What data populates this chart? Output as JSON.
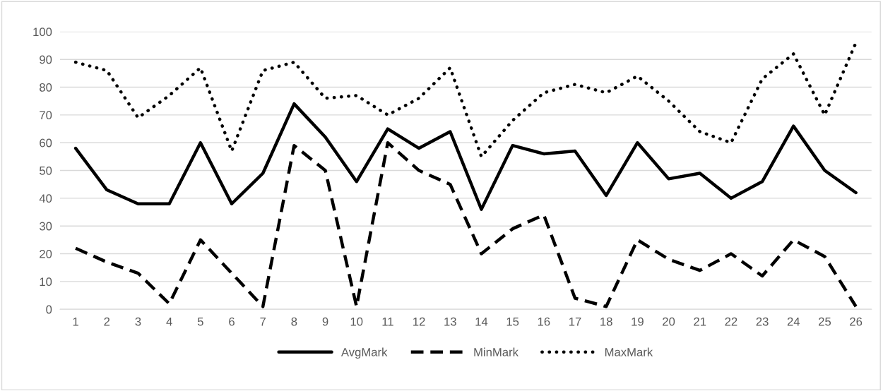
{
  "chart_data": {
    "type": "line",
    "categories": [
      "1",
      "2",
      "3",
      "4",
      "5",
      "6",
      "7",
      "8",
      "9",
      "10",
      "11",
      "12",
      "13",
      "14",
      "15",
      "16",
      "17",
      "18",
      "19",
      "20",
      "21",
      "22",
      "23",
      "24",
      "25",
      "26"
    ],
    "series": [
      {
        "name": "AvgMark",
        "color": "#000000",
        "line_style": "solid",
        "values": [
          58,
          43,
          38,
          38,
          60,
          38,
          49,
          74,
          62,
          46,
          65,
          58,
          64,
          36,
          59,
          56,
          57,
          41,
          60,
          47,
          49,
          40,
          46,
          66,
          50,
          42
        ]
      },
      {
        "name": "MinMark",
        "color": "#000000",
        "line_style": "dashed",
        "values": [
          22,
          17,
          13,
          2,
          25,
          13,
          1,
          59,
          50,
          1,
          60,
          50,
          45,
          20,
          29,
          34,
          4,
          1,
          25,
          18,
          14,
          20,
          12,
          25,
          19,
          1
        ]
      },
      {
        "name": "MaxMark",
        "color": "#000000",
        "line_style": "dotted",
        "values": [
          89,
          86,
          69,
          77,
          87,
          57,
          86,
          89,
          76,
          77,
          70,
          76,
          87,
          55,
          68,
          78,
          81,
          78,
          84,
          75,
          64,
          60,
          83,
          92,
          70,
          96
        ]
      }
    ],
    "ylim": [
      0,
      100
    ],
    "yticks": [
      0,
      10,
      20,
      30,
      40,
      50,
      60,
      70,
      80,
      90,
      100
    ],
    "grid": "y",
    "legend": "bottom",
    "marker": "none"
  }
}
